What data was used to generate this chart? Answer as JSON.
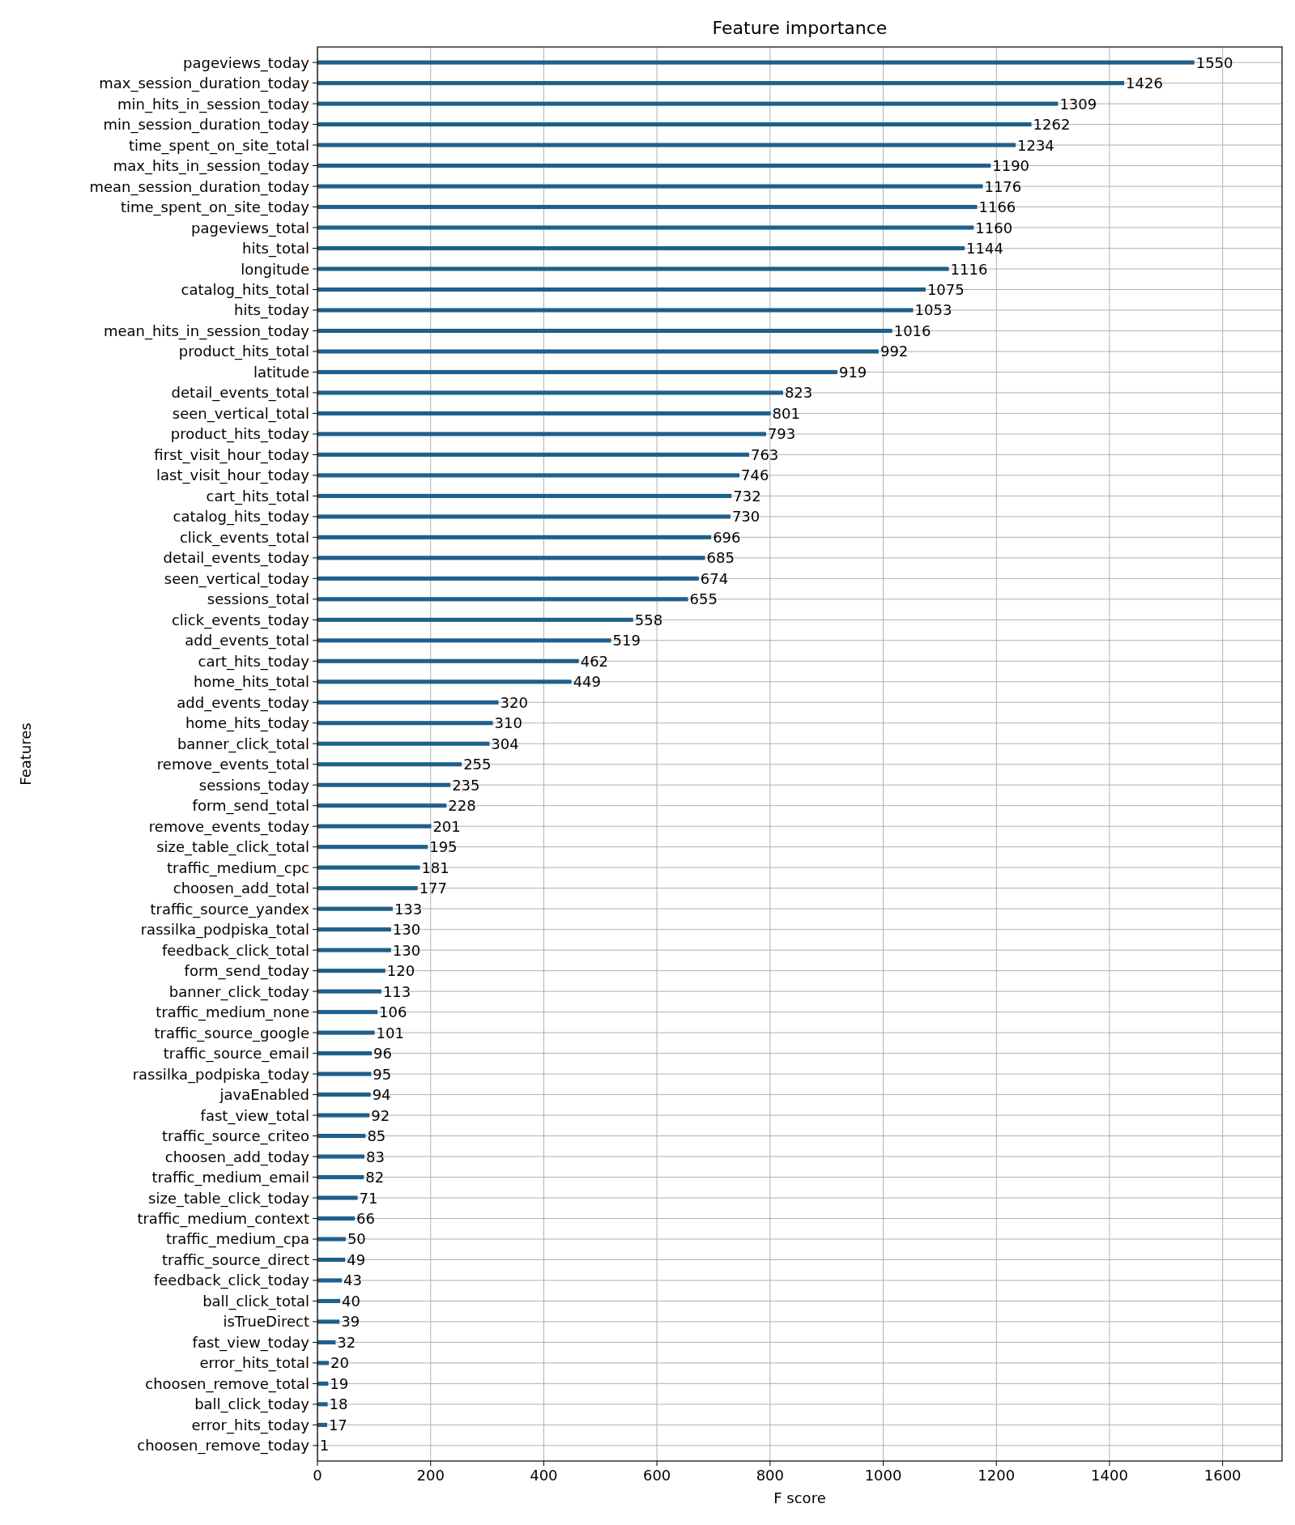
{
  "chart_data": {
    "type": "bar",
    "orientation": "horizontal",
    "title": "Feature importance",
    "xlabel": "F score",
    "ylabel": "Features",
    "color": "#1f5f8b",
    "grid": true,
    "data_labels": true,
    "xlim": [
      0,
      1705
    ],
    "xticks": [
      0,
      200,
      400,
      600,
      800,
      1000,
      1200,
      1400,
      1600
    ],
    "categories": [
      "pageviews_today",
      "max_session_duration_today",
      "min_hits_in_session_today",
      "min_session_duration_today",
      "time_spent_on_site_total",
      "max_hits_in_session_today",
      "mean_session_duration_today",
      "time_spent_on_site_today",
      "pageviews_total",
      "hits_total",
      "longitude",
      "catalog_hits_total",
      "hits_today",
      "mean_hits_in_session_today",
      "product_hits_total",
      "latitude",
      "detail_events_total",
      "seen_vertical_total",
      "product_hits_today",
      "first_visit_hour_today",
      "last_visit_hour_today",
      "cart_hits_total",
      "catalog_hits_today",
      "click_events_total",
      "detail_events_today",
      "seen_vertical_today",
      "sessions_total",
      "click_events_today",
      "add_events_total",
      "cart_hits_today",
      "home_hits_total",
      "add_events_today",
      "home_hits_today",
      "banner_click_total",
      "remove_events_total",
      "sessions_today",
      "form_send_total",
      "remove_events_today",
      "size_table_click_total",
      "traffic_medium_cpc",
      "choosen_add_total",
      "traffic_source_yandex",
      "rassilka_podpiska_total",
      "feedback_click_total",
      "form_send_today",
      "banner_click_today",
      "traffic_medium_none",
      "traffic_source_google",
      "traffic_source_email",
      "rassilka_podpiska_today",
      "javaEnabled",
      "fast_view_total",
      "traffic_source_criteo",
      "choosen_add_today",
      "traffic_medium_email",
      "size_table_click_today",
      "traffic_medium_context",
      "traffic_medium_cpa",
      "traffic_source_direct",
      "feedback_click_today",
      "ball_click_total",
      "isTrueDirect",
      "fast_view_today",
      "error_hits_total",
      "choosen_remove_total",
      "ball_click_today",
      "error_hits_today",
      "choosen_remove_today"
    ],
    "values": [
      1550,
      1426,
      1309,
      1262,
      1234,
      1190,
      1176,
      1166,
      1160,
      1144,
      1116,
      1075,
      1053,
      1016,
      992,
      919,
      823,
      801,
      793,
      763,
      746,
      732,
      730,
      696,
      685,
      674,
      655,
      558,
      519,
      462,
      449,
      320,
      310,
      304,
      255,
      235,
      228,
      201,
      195,
      181,
      177,
      133,
      130,
      130,
      120,
      113,
      106,
      101,
      96,
      95,
      94,
      92,
      85,
      83,
      82,
      71,
      66,
      50,
      49,
      43,
      40,
      39,
      32,
      20,
      19,
      18,
      17,
      1
    ]
  }
}
